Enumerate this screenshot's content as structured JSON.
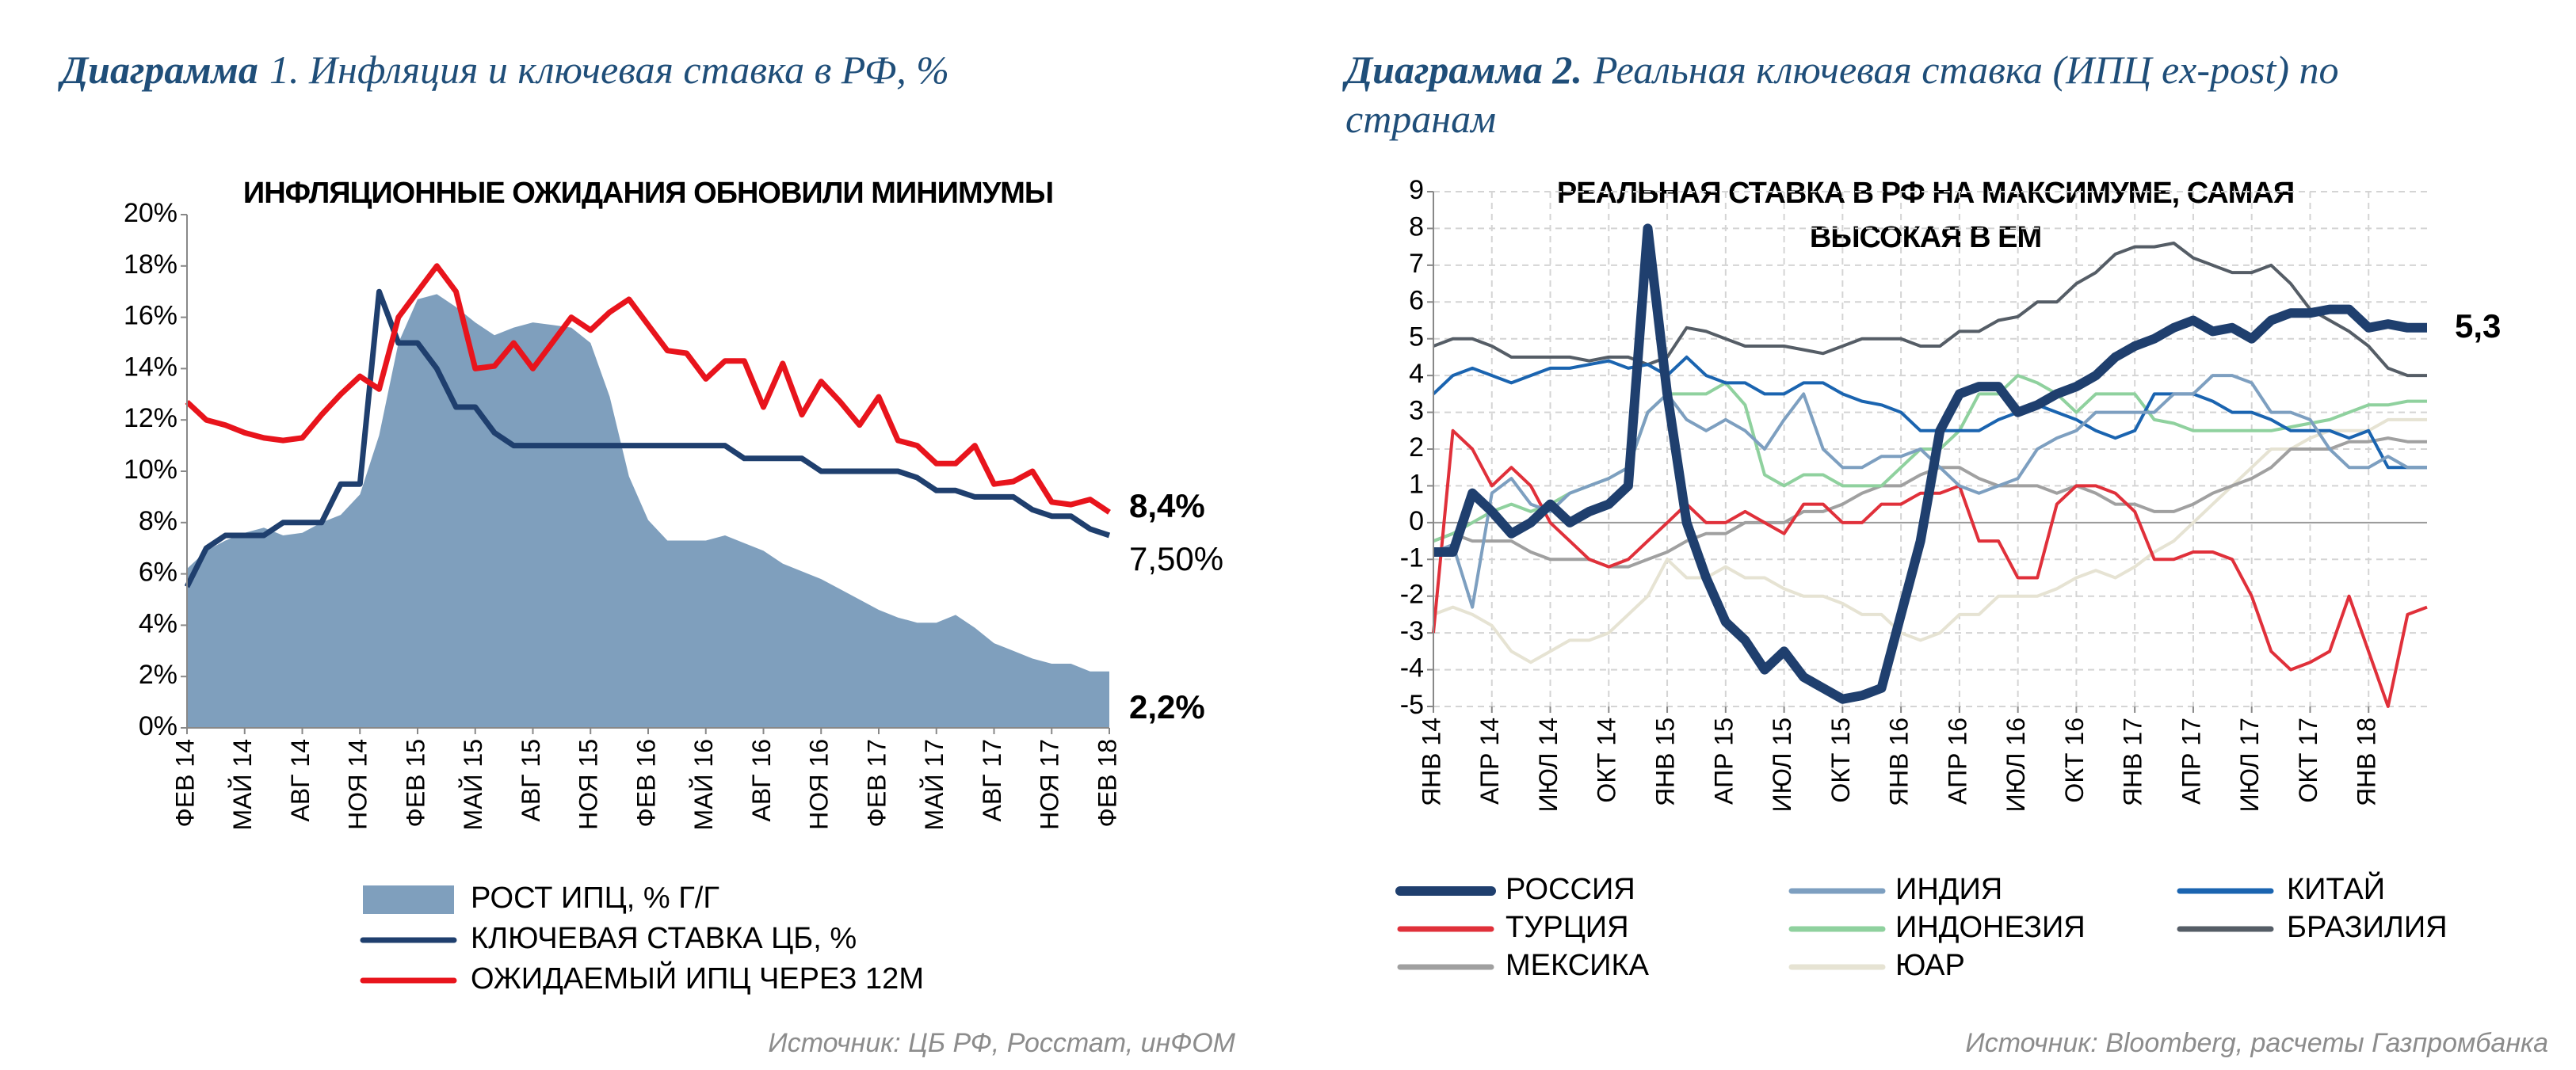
{
  "chart_data": [
    {
      "type": "line",
      "caption_bold": "Диаграмма",
      "caption_lines": [
        "1. Инфляция и ключевая ставка в РФ, %"
      ],
      "title": "ИНФЛЯЦИОННЫЕ ОЖИДАНИЯ ОБНОВИЛИ МИНИМУМЫ",
      "categories": [
        "ФЕВ 14",
        null,
        null,
        "МАЙ 14",
        null,
        null,
        "АВГ 14",
        null,
        null,
        "НОЯ 14",
        null,
        null,
        "ФЕВ 15",
        null,
        null,
        "МАЙ 15",
        null,
        null,
        "АВГ 15",
        null,
        null,
        "НОЯ 15",
        null,
        null,
        "ФЕВ 16",
        null,
        null,
        "МАЙ 16",
        null,
        null,
        "АВГ 16",
        null,
        null,
        "НОЯ 16",
        null,
        null,
        "ФЕВ 17",
        null,
        null,
        "МАЙ 17",
        null,
        null,
        "АВГ 17",
        null,
        null,
        "НОЯ 17",
        null,
        null,
        "ФЕВ 18"
      ],
      "ylim": [
        0,
        20
      ],
      "yticks": [
        {
          "value": 0,
          "label": "0%"
        },
        {
          "value": 2,
          "label": "2%"
        },
        {
          "value": 4,
          "label": "4%"
        },
        {
          "value": 6,
          "label": "6%"
        },
        {
          "value": 8,
          "label": "8%"
        },
        {
          "value": 10,
          "label": "10%"
        },
        {
          "value": 12,
          "label": "12%"
        },
        {
          "value": 14,
          "label": "14%"
        },
        {
          "value": 16,
          "label": "16%"
        },
        {
          "value": 18,
          "label": "18%"
        },
        {
          "value": 20,
          "label": "20%"
        }
      ],
      "grid": false,
      "series": [
        {
          "name": "РОСТ ИПЦ, % Г/Г",
          "style": "area",
          "color": "#7f9fbd",
          "end_label": "2,2%",
          "end_label_color": "#1f3f6e",
          "values": [
            6.2,
            6.9,
            7.3,
            7.6,
            7.8,
            7.5,
            7.6,
            8.0,
            8.3,
            9.1,
            11.4,
            15.0,
            16.7,
            16.9,
            16.4,
            15.8,
            15.3,
            15.6,
            15.8,
            15.7,
            15.6,
            15.0,
            12.9,
            9.8,
            8.1,
            7.3,
            7.3,
            7.3,
            7.5,
            7.2,
            6.9,
            6.4,
            6.1,
            5.8,
            5.4,
            5.0,
            4.6,
            4.3,
            4.1,
            4.1,
            4.4,
            3.9,
            3.3,
            3.0,
            2.7,
            2.5,
            2.5,
            2.2,
            2.2
          ]
        },
        {
          "name": "КЛЮЧЕВАЯ СТАВКА ЦБ, %",
          "style": "line",
          "color": "#1f3f6e",
          "end_label": "7,50%",
          "end_label_color": "#000000",
          "values": [
            5.5,
            7.0,
            7.5,
            7.5,
            7.5,
            8.0,
            8.0,
            8.0,
            9.5,
            9.5,
            17.0,
            15.0,
            15.0,
            14.0,
            12.5,
            12.5,
            11.5,
            11.0,
            11.0,
            11.0,
            11.0,
            11.0,
            11.0,
            11.0,
            11.0,
            11.0,
            11.0,
            11.0,
            11.0,
            10.5,
            10.5,
            10.5,
            10.5,
            10.0,
            10.0,
            10.0,
            10.0,
            10.0,
            9.75,
            9.25,
            9.25,
            9.0,
            9.0,
            9.0,
            8.5,
            8.25,
            8.25,
            7.75,
            7.5
          ]
        },
        {
          "name": "ОЖИДАЕМЫЙ ИПЦ ЧЕРЕЗ 12М",
          "style": "line",
          "color": "#e8141c",
          "end_label": "8,4%",
          "end_label_color": "#e8141c",
          "values": [
            12.7,
            12.0,
            11.8,
            11.5,
            11.3,
            11.2,
            11.3,
            12.2,
            13.0,
            13.7,
            13.2,
            16.0,
            17.0,
            18.0,
            17.0,
            14.0,
            14.1,
            15.0,
            14.0,
            15.0,
            16.0,
            15.5,
            16.2,
            16.7,
            15.7,
            14.7,
            14.6,
            13.6,
            14.3,
            14.3,
            12.5,
            14.2,
            12.2,
            13.5,
            12.7,
            11.8,
            12.9,
            11.2,
            11.0,
            10.3,
            10.3,
            11.0,
            9.5,
            9.6,
            10.0,
            8.8,
            8.7,
            8.9,
            8.4
          ]
        }
      ],
      "source": "Источник: ЦБ РФ, Росстат, инФОМ"
    },
    {
      "type": "line",
      "caption_bold": "Диаграмма 2.",
      "caption_lines": [
        "Реальная ключевая ставка (ИПЦ ex-post) по",
        "странам"
      ],
      "title": [
        "РЕАЛЬНАЯ СТАВКА В РФ НА МАКСИМУМЕ, САМАЯ",
        "ВЫСОКАЯ В ЕМ"
      ],
      "categories": [
        "ЯНВ 14",
        null,
        null,
        "АПР 14",
        null,
        null,
        "ИЮЛ 14",
        null,
        null,
        "ОКТ 14",
        null,
        null,
        "ЯНВ 15",
        null,
        null,
        "АПР 15",
        null,
        null,
        "ИЮЛ 15",
        null,
        null,
        "ОКТ 15",
        null,
        null,
        "ЯНВ 16",
        null,
        null,
        "АПР 16",
        null,
        null,
        "ИЮЛ 16",
        null,
        null,
        "ОКТ 16",
        null,
        null,
        "ЯНВ 17",
        null,
        null,
        "АПР 17",
        null,
        null,
        "ИЮЛ 17",
        null,
        null,
        "ОКТ 17",
        null,
        null,
        "ЯНВ 18",
        null,
        null,
        null
      ],
      "ylim": [
        -5,
        9
      ],
      "yticks": [
        -5,
        -4,
        -3,
        -2,
        -1,
        0,
        1,
        2,
        3,
        4,
        5,
        6,
        7,
        8,
        9
      ],
      "grid": true,
      "series": [
        {
          "name": "РОССИЯ",
          "style": "line",
          "width": 12,
          "color": "#1f3f6e",
          "end_label": "5,3",
          "end_label_color": "#1f3f6e",
          "values": [
            -0.8,
            -0.8,
            0.8,
            0.3,
            -0.3,
            0.0,
            0.5,
            0.0,
            0.3,
            0.5,
            1.0,
            8.0,
            3.5,
            0.0,
            -1.5,
            -2.7,
            -3.2,
            -4.0,
            -3.5,
            -4.2,
            -4.5,
            -4.8,
            -4.7,
            -4.5,
            -2.5,
            -0.5,
            2.5,
            3.5,
            3.7,
            3.7,
            3.0,
            3.2,
            3.5,
            3.7,
            4.0,
            4.5,
            4.8,
            5.0,
            5.3,
            5.5,
            5.2,
            5.3,
            5.0,
            5.5,
            5.7,
            5.7,
            5.8,
            5.8,
            5.3,
            5.4,
            5.3,
            5.3
          ]
        },
        {
          "name": "ИНДИЯ",
          "style": "line",
          "color": "#7d9fc0",
          "values": [
            -0.8,
            -0.6,
            -2.3,
            0.8,
            1.2,
            0.5,
            0.3,
            0.8,
            1.0,
            1.2,
            1.5,
            3.0,
            3.5,
            2.8,
            2.5,
            2.8,
            2.5,
            2.0,
            2.8,
            3.5,
            2.0,
            1.5,
            1.5,
            1.8,
            1.8,
            2.0,
            1.5,
            1.0,
            0.8,
            1.0,
            1.2,
            2.0,
            2.3,
            2.5,
            3.0,
            3.0,
            3.0,
            3.0,
            3.5,
            3.5,
            4.0,
            4.0,
            3.8,
            3.0,
            3.0,
            2.8,
            2.0,
            1.5,
            1.5,
            1.8,
            1.5,
            1.5
          ]
        },
        {
          "name": "КИТАЙ",
          "style": "line",
          "color": "#1a64b0",
          "values": [
            3.5,
            4.0,
            4.2,
            4.0,
            3.8,
            4.0,
            4.2,
            4.2,
            4.3,
            4.4,
            4.2,
            4.3,
            4.0,
            4.5,
            4.0,
            3.8,
            3.8,
            3.5,
            3.5,
            3.8,
            3.8,
            3.5,
            3.3,
            3.2,
            3.0,
            2.5,
            2.5,
            2.5,
            2.5,
            2.8,
            3.0,
            3.2,
            3.0,
            2.8,
            2.5,
            2.3,
            2.5,
            3.5,
            3.5,
            3.5,
            3.3,
            3.0,
            3.0,
            2.8,
            2.5,
            2.5,
            2.5,
            2.3,
            2.5,
            1.5,
            1.5,
            1.5
          ]
        },
        {
          "name": "ТУРЦИЯ",
          "style": "line",
          "color": "#e0303a",
          "values": [
            -3.0,
            2.5,
            2.0,
            1.0,
            1.5,
            1.0,
            0.0,
            -0.5,
            -1.0,
            -1.2,
            -1.0,
            -0.5,
            0.0,
            0.5,
            0.0,
            0.0,
            0.3,
            0.0,
            -0.3,
            0.5,
            0.5,
            0.0,
            0.0,
            0.5,
            0.5,
            0.8,
            0.8,
            1.0,
            -0.5,
            -0.5,
            -1.5,
            -1.5,
            0.5,
            1.0,
            1.0,
            0.8,
            0.3,
            -1.0,
            -1.0,
            -0.8,
            -0.8,
            -1.0,
            -2.0,
            -3.5,
            -4.0,
            -3.8,
            -3.5,
            -2.0,
            -3.5,
            -5.0,
            -2.5,
            -2.3
          ]
        },
        {
          "name": "ИНДОНЕЗИЯ",
          "style": "line",
          "color": "#8fd19e",
          "values": [
            -0.5,
            -0.3,
            0.0,
            0.3,
            0.5,
            0.3,
            0.5,
            0.8,
            1.0,
            1.2,
            1.5,
            3.0,
            3.5,
            3.5,
            3.5,
            3.8,
            3.2,
            1.3,
            1.0,
            1.3,
            1.3,
            1.0,
            1.0,
            1.0,
            1.5,
            2.0,
            2.0,
            2.5,
            3.5,
            3.5,
            4.0,
            3.8,
            3.5,
            3.0,
            3.5,
            3.5,
            3.5,
            2.8,
            2.7,
            2.5,
            2.5,
            2.5,
            2.5,
            2.5,
            2.6,
            2.7,
            2.8,
            3.0,
            3.2,
            3.2,
            3.3,
            3.3
          ]
        },
        {
          "name": "БРАЗИЛИЯ",
          "style": "line",
          "color": "#555d66",
          "values": [
            4.8,
            5.0,
            5.0,
            4.8,
            4.5,
            4.5,
            4.5,
            4.5,
            4.4,
            4.5,
            4.5,
            4.3,
            4.5,
            5.3,
            5.2,
            5.0,
            4.8,
            4.8,
            4.8,
            4.7,
            4.6,
            4.8,
            5.0,
            5.0,
            5.0,
            4.8,
            4.8,
            5.2,
            5.2,
            5.5,
            5.6,
            6.0,
            6.0,
            6.5,
            6.8,
            7.3,
            7.5,
            7.5,
            7.6,
            7.2,
            7.0,
            6.8,
            6.8,
            7.0,
            6.5,
            5.8,
            5.5,
            5.2,
            4.8,
            4.2,
            4.0,
            4.0
          ]
        },
        {
          "name": "МЕКСИКА",
          "style": "line",
          "color": "#a0a0a0",
          "values": [
            -0.5,
            -0.3,
            -0.5,
            -0.5,
            -0.5,
            -0.8,
            -1.0,
            -1.0,
            -1.0,
            -1.2,
            -1.2,
            -1.0,
            -0.8,
            -0.5,
            -0.3,
            -0.3,
            0.0,
            0.0,
            0.0,
            0.3,
            0.3,
            0.5,
            0.8,
            1.0,
            1.0,
            1.3,
            1.5,
            1.5,
            1.2,
            1.0,
            1.0,
            1.0,
            0.8,
            1.0,
            0.8,
            0.5,
            0.5,
            0.3,
            0.3,
            0.5,
            0.8,
            1.0,
            1.2,
            1.5,
            2.0,
            2.0,
            2.0,
            2.2,
            2.2,
            2.3,
            2.2,
            2.2
          ]
        },
        {
          "name": "ЮАР",
          "style": "line",
          "color": "#e6e3d3",
          "values": [
            -2.5,
            -2.3,
            -2.5,
            -2.8,
            -3.5,
            -3.8,
            -3.5,
            -3.2,
            -3.2,
            -3.0,
            -2.5,
            -2.0,
            -1.0,
            -1.5,
            -1.5,
            -1.2,
            -1.5,
            -1.5,
            -1.8,
            -2.0,
            -2.0,
            -2.2,
            -2.5,
            -2.5,
            -3.0,
            -3.2,
            -3.0,
            -2.5,
            -2.5,
            -2.0,
            -2.0,
            -2.0,
            -1.8,
            -1.5,
            -1.3,
            -1.5,
            -1.2,
            -0.8,
            -0.5,
            0.0,
            0.5,
            1.0,
            1.5,
            2.0,
            2.0,
            2.3,
            2.5,
            2.5,
            2.5,
            2.8,
            2.8,
            2.8
          ]
        }
      ],
      "source": "Источник:   Bloomberg, расчеты Газпромбанка"
    }
  ]
}
